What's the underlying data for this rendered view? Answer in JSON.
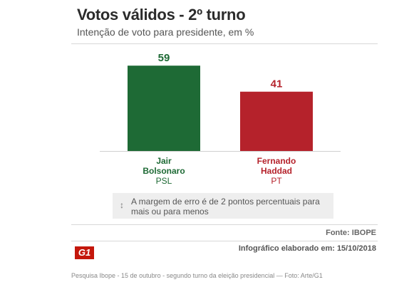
{
  "header": {
    "title": "Votos válidos - 2º turno",
    "subtitle": "Intenção de voto para presidente, em %"
  },
  "chart_data": {
    "type": "bar",
    "title": "Votos válidos - 2º turno",
    "subtitle": "Intenção de voto para presidente, em %",
    "categories": [
      "Jair Bolsonaro",
      "Fernando Haddad"
    ],
    "category_lines": [
      [
        "Jair",
        "Bolsonaro"
      ],
      [
        "Fernando",
        "Haddad"
      ]
    ],
    "parties": [
      "PSL",
      "PT"
    ],
    "values": [
      59,
      41
    ],
    "colors": [
      "#1e6a35",
      "#b5222b"
    ],
    "ylim": [
      0,
      65
    ],
    "grid": false
  },
  "note": {
    "icon": "up-down-arrow-icon",
    "text": "A margem de erro é de 2 pontos percentuais para mais ou para menos"
  },
  "footer": {
    "source": "Fonte: IBOPE",
    "credit": "Infográfico elaborado em: 15/10/2018",
    "logo": "G1",
    "caption": "Pesquisa Ibope - 15 de outubro - segundo turno da eleição presidencial — Foto: Arte/G1"
  }
}
